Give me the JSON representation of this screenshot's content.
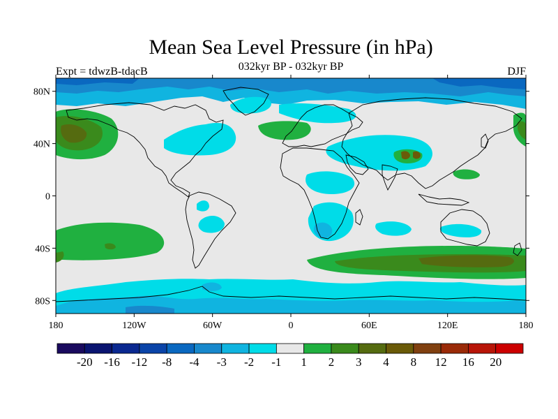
{
  "title": "Mean Sea Level Pressure (in hPa)",
  "subtitle": "032kyr BP - 032kyr BP",
  "left_label": "Expt = tdwzB-tdacB",
  "right_label": "DJF",
  "axes": {
    "lat_ticks": [
      {
        "lat": 80,
        "label": "80N"
      },
      {
        "lat": 40,
        "label": "40N"
      },
      {
        "lat": 0,
        "label": "0"
      },
      {
        "lat": -40,
        "label": "40S"
      },
      {
        "lat": -80,
        "label": "80S"
      }
    ],
    "lon_ticks": [
      {
        "lon": -180,
        "label": "180"
      },
      {
        "lon": -120,
        "label": "120W"
      },
      {
        "lon": -60,
        "label": "60W"
      },
      {
        "lon": 0,
        "label": "0"
      },
      {
        "lon": 60,
        "label": "60E"
      },
      {
        "lon": 120,
        "label": "120E"
      },
      {
        "lon": 180,
        "label": "180"
      }
    ],
    "lon_range": [
      -180,
      180
    ],
    "lat_range": [
      -90,
      90
    ]
  },
  "colorbar": {
    "colors": [
      "#1a0a5e",
      "#0a1470",
      "#0a2890",
      "#0a44a8",
      "#0a68c0",
      "#1888cc",
      "#10b4e0",
      "#00dce8",
      "#e8e8e8",
      "#20b040",
      "#3a8a1c",
      "#556b10",
      "#6a5a08",
      "#804010",
      "#9a2a08",
      "#b81508",
      "#cc0000"
    ],
    "labels": [
      "-20",
      "-16",
      "-12",
      "-8",
      "-4",
      "-3",
      "-2",
      "-1",
      "1",
      "2",
      "3",
      "4",
      "8",
      "12",
      "16",
      "20"
    ]
  },
  "colors": {
    "neutral": "#e8e8e8",
    "cyan": "#00dce8",
    "light_blue": "#10b4e0",
    "mid_blue": "#1888cc",
    "blue": "#0a68c0",
    "green": "#20b040",
    "dark_green": "#3a8a1c",
    "olive": "#556b10",
    "brown": "#6a5a08",
    "coast": "#000000"
  }
}
